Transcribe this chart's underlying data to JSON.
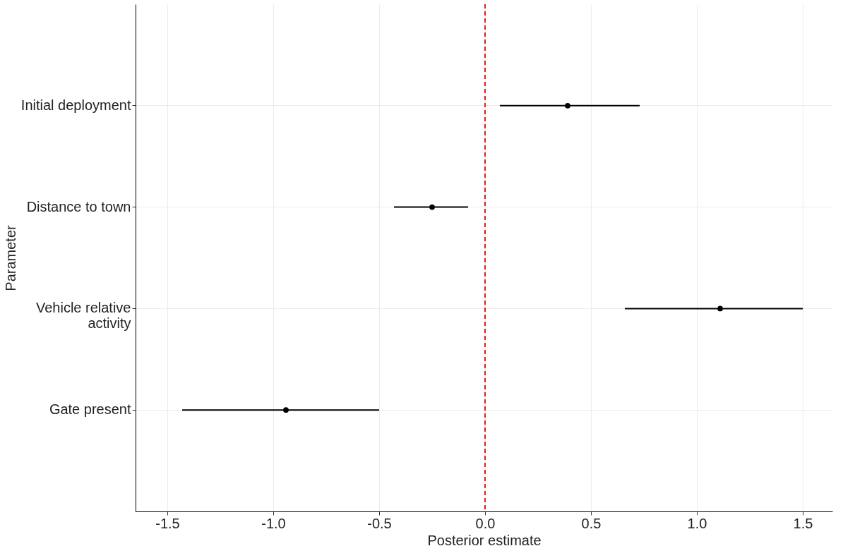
{
  "chart_data": {
    "type": "scatter",
    "orientation": "horizontal",
    "xlabel": "Posterior estimate",
    "ylabel": "Parameter",
    "categories": [
      "Initial deployment",
      "Distance to town",
      "Vehicle relative\nactivity",
      "Gate present"
    ],
    "series": [
      {
        "color": "#000000",
        "values": [
          0.39,
          -0.25,
          1.11,
          -0.94
        ],
        "errors": [
          [
            0.07,
            0.73
          ],
          [
            -0.43,
            -0.08
          ],
          [
            0.66,
            1.5
          ],
          [
            -1.43,
            -0.5
          ]
        ]
      }
    ],
    "xlim": [
      -1.65,
      1.64
    ],
    "xticks": [
      {
        "value": -1.5,
        "label": "-1.5"
      },
      {
        "value": -1.0,
        "label": "-1.0"
      },
      {
        "value": -0.5,
        "label": "-0.5"
      },
      {
        "value": 0,
        "label": "0.0"
      },
      {
        "value": 0.5,
        "label": "0.5"
      },
      {
        "value": 1.0,
        "label": "1.0"
      },
      {
        "value": 1.5,
        "label": "1.5"
      }
    ],
    "ref_lines": [
      {
        "axis": "x",
        "value": 0,
        "color": "#e41a1c",
        "line_style": "dashed"
      }
    ],
    "grid": true,
    "marker": "circle",
    "legend": false
  }
}
